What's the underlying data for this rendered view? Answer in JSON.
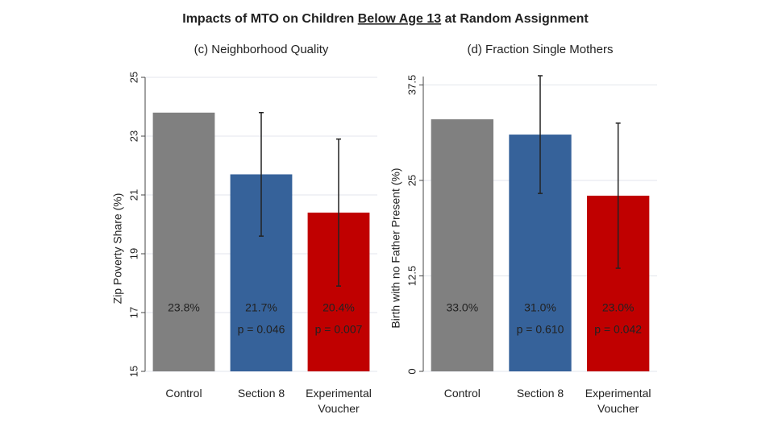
{
  "title": [
    "Impacts of MTO on Children",
    "Below Age 13",
    "at Random Assignment"
  ],
  "chart_data": [
    {
      "type": "bar",
      "title": "(c) Neighborhood Quality",
      "ylabel": "Zip Poverty Share (%)",
      "categories": [
        "Control",
        "Section 8",
        "Experimental Voucher"
      ],
      "values": [
        23.8,
        21.7,
        20.4
      ],
      "value_labels": [
        "23.8%",
        "21.7%",
        "20.4%"
      ],
      "errors": [
        null,
        2.1,
        2.5
      ],
      "p_labels": [
        null,
        "p = 0.046",
        "p = 0.007"
      ],
      "colors": [
        "#808080",
        "#36629a",
        "#c00000"
      ],
      "ylim": [
        15,
        25
      ],
      "yticks": [
        15,
        17,
        19,
        21,
        23,
        25
      ],
      "grid": true
    },
    {
      "type": "bar",
      "title": "(d) Fraction Single Mothers",
      "ylabel": "Birth with no Father Present (%)",
      "categories": [
        "Control",
        "Section 8",
        "Experimental Voucher"
      ],
      "values": [
        33.0,
        31.0,
        23.0
      ],
      "value_labels": [
        "33.0%",
        "31.0%",
        "23.0%"
      ],
      "errors": [
        null,
        7.7,
        9.5
      ],
      "p_labels": [
        null,
        "p = 0.610",
        "p = 0.042"
      ],
      "colors": [
        "#808080",
        "#36629a",
        "#c00000"
      ],
      "ylim": [
        0,
        38.6
      ],
      "yticks": [
        0,
        12.5,
        25,
        37.5
      ],
      "grid": true
    }
  ]
}
